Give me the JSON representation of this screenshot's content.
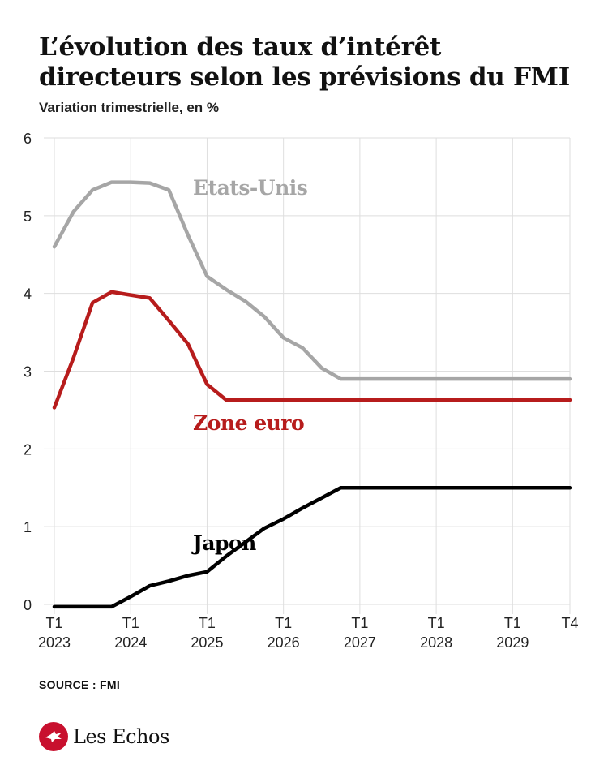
{
  "header": {
    "title": "L’évolution des taux d’intérêt directeurs selon les prévisions du FMI",
    "subtitle": "Variation trimestrielle, en %"
  },
  "footer": {
    "source": "SOURCE : FMI",
    "logo_text": "Les Echos"
  },
  "colors": {
    "us": "#a6a6a6",
    "eurozone": "#b71c1c",
    "japan": "#000000",
    "grid": "#dedede"
  },
  "chart_data": {
    "type": "line",
    "title": "L’évolution des taux d’intérêt directeurs selon les prévisions du FMI",
    "subtitle": "Variation trimestrielle, en %",
    "xlabel": "",
    "ylabel": "",
    "ylim": [
      0,
      6
    ],
    "yticks": [
      0,
      1,
      2,
      3,
      4,
      5,
      6
    ],
    "grid": true,
    "legend": "inline labels",
    "x_quarters": [
      "T1 2023",
      "T2 2023",
      "T3 2023",
      "T4 2023",
      "T1 2024",
      "T2 2024",
      "T3 2024",
      "T4 2024",
      "T1 2025",
      "T2 2025",
      "T3 2025",
      "T4 2025",
      "T1 2026",
      "T2 2026",
      "T3 2026",
      "T4 2026",
      "T1 2027",
      "T2 2027",
      "T3 2027",
      "T4 2027",
      "T1 2028",
      "T2 2028",
      "T3 2028",
      "T4 2028",
      "T1 2029",
      "T2 2029",
      "T3 2029",
      "T4 2029"
    ],
    "x_tick_labels": [
      {
        "index": 0,
        "line1": "T1",
        "line2": "2023"
      },
      {
        "index": 4,
        "line1": "T1",
        "line2": "2024"
      },
      {
        "index": 8,
        "line1": "T1",
        "line2": "2025"
      },
      {
        "index": 12,
        "line1": "T1",
        "line2": "2026"
      },
      {
        "index": 16,
        "line1": "T1",
        "line2": "2027"
      },
      {
        "index": 20,
        "line1": "T1",
        "line2": "2028"
      },
      {
        "index": 24,
        "line1": "T1",
        "line2": "2029"
      },
      {
        "index": 27,
        "line1": "T4",
        "line2": ""
      }
    ],
    "series": [
      {
        "name": "Etats-Unis",
        "color": "#a6a6a6",
        "values": [
          4.6,
          5.05,
          5.33,
          5.43,
          5.43,
          5.42,
          5.33,
          4.75,
          4.22,
          4.05,
          3.9,
          3.7,
          3.43,
          3.3,
          3.04,
          2.9,
          2.9,
          2.9,
          2.9,
          2.9,
          2.9,
          2.9,
          2.9,
          2.9,
          2.9,
          2.9,
          2.9,
          2.9
        ]
      },
      {
        "name": "Zone euro",
        "color": "#b71c1c",
        "values": [
          2.53,
          3.17,
          3.88,
          4.02,
          3.98,
          3.94,
          3.65,
          3.35,
          2.83,
          2.63,
          2.63,
          2.63,
          2.63,
          2.63,
          2.63,
          2.63,
          2.63,
          2.63,
          2.63,
          2.63,
          2.63,
          2.63,
          2.63,
          2.63,
          2.63,
          2.63,
          2.63,
          2.63
        ]
      },
      {
        "name": "Japon",
        "color": "#000000",
        "values": [
          -0.03,
          -0.03,
          -0.03,
          -0.03,
          0.1,
          0.24,
          0.3,
          0.37,
          0.42,
          0.62,
          0.8,
          0.98,
          1.1,
          1.24,
          1.37,
          1.5,
          1.5,
          1.5,
          1.5,
          1.5,
          1.5,
          1.5,
          1.5,
          1.5,
          1.5,
          1.5,
          1.5,
          1.5
        ]
      }
    ],
    "annotations": [
      {
        "text": "Etats-Unis",
        "series": 0
      },
      {
        "text": "Zone euro",
        "series": 1
      },
      {
        "text": "Japon",
        "series": 2
      }
    ]
  }
}
